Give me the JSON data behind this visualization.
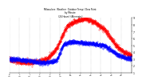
{
  "title": "Milwaukee  Weather  Outdoor Temp / Dew Point\nby Minute\n(24 Hours) (Alternate)",
  "bg_color": "#ffffff",
  "temp_color": "#ff0000",
  "dew_color": "#0000ff",
  "grid_color": "#888888",
  "ylim": [
    1,
    9
  ],
  "ytick_labels": [
    "9",
    "8",
    "7",
    "6",
    "5",
    "4",
    "3",
    "2",
    "1"
  ],
  "ytick_vals": [
    9,
    8,
    7,
    6,
    5,
    4,
    3,
    2,
    1
  ],
  "n_minutes": 1440,
  "temp_shape": {
    "comment": "starts ~3, stays low morning, sharp rise ~600min, peak ~9 at ~900min, drops to ~4 by end",
    "x_ctrl": [
      0,
      200,
      400,
      550,
      700,
      900,
      1100,
      1300,
      1440
    ],
    "y_ctrl": [
      3.0,
      2.5,
      2.8,
      4.5,
      8.0,
      8.8,
      7.5,
      4.5,
      3.5
    ]
  },
  "dew_shape": {
    "comment": "starts ~3, mostly flat early, rises ~600-700 to ~5-6, flat then drops",
    "x_ctrl": [
      0,
      200,
      400,
      550,
      650,
      750,
      900,
      1100,
      1300,
      1440
    ],
    "y_ctrl": [
      3.0,
      2.8,
      2.5,
      2.8,
      5.2,
      5.5,
      5.3,
      5.0,
      3.5,
      3.0
    ]
  },
  "noise_temp": 0.18,
  "noise_dew": 0.15,
  "marker_size": 0.5,
  "title_fontsize": 2.0,
  "tick_fontsize": 2.2,
  "n_gridlines": 12
}
